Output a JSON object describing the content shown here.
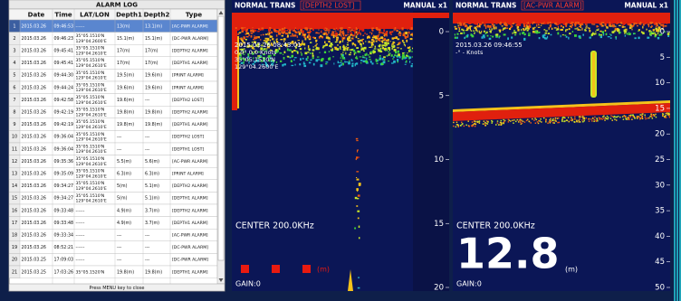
{
  "alarm_log": {
    "title": "ALARM LOG",
    "columns": [
      "Date",
      "Time",
      "LAT/LON",
      "Depth1",
      "Depth2",
      "Type"
    ],
    "rows": [
      [
        1,
        "2015.03.26",
        "09:46:53",
        [
          "------"
        ],
        "13(m)",
        "13.1(m)",
        "[AC-PWR ALARM]"
      ],
      [
        2,
        "2015.03.26",
        "09:46:23",
        [
          "35°05.1510'N",
          "129°04.2600'E"
        ],
        "15.1(m)",
        "15.1(m)",
        "[DC-PWR ALARM]"
      ],
      [
        3,
        "2015.03.26",
        "09:45:41",
        [
          "35°05.1510'N",
          "129°04.2610'E"
        ],
        "17(m)",
        "17(m)",
        "[DEPTH2 ALARM]"
      ],
      [
        4,
        "2015.03.26",
        "09:45:41",
        [
          "35°05.1510'N",
          "129°04.2610'E"
        ],
        "17(m)",
        "17(m)",
        "[DEPTH1 ALARM]"
      ],
      [
        5,
        "2015.03.26",
        "09:44:30",
        [
          "35°05.1510'N",
          "129°04.2610'E"
        ],
        "19.5(m)",
        "19.6(m)",
        "[PRINT ALARM]"
      ],
      [
        6,
        "2015.03.26",
        "09:44:24",
        [
          "35°05.1510'N",
          "129°04.2610'E"
        ],
        "19.6(m)",
        "19.6(m)",
        "[PRINT ALARM]"
      ],
      [
        7,
        "2015.03.26",
        "09:42:58",
        [
          "35°05.1510'N",
          "129°04.2610'E"
        ],
        "19.6(m)",
        "---",
        "[DEPTH2 LOST]"
      ],
      [
        8,
        "2015.03.26",
        "09:42:19",
        [
          "35°05.1510'N",
          "129°04.2610'E"
        ],
        "19.8(m)",
        "19.8(m)",
        "[DEPTH2 ALARM]"
      ],
      [
        9,
        "2015.03.26",
        "09:42:19",
        [
          "35°05.1510'N",
          "129°04.2610'E"
        ],
        "19.8(m)",
        "19.8(m)",
        "[DEPTH1 ALARM]"
      ],
      [
        10,
        "2015.03.26",
        "09:36:04",
        [
          "35°05.1510'N",
          "129°04.2610'E"
        ],
        "---",
        "---",
        "[DEPTH2 LOST]"
      ],
      [
        11,
        "2015.03.26",
        "09:36:04",
        [
          "35°05.1510'N",
          "129°04.2610'E"
        ],
        "---",
        "---",
        "[DEPTH1 LOST]"
      ],
      [
        12,
        "2015.03.26",
        "09:35:36",
        [
          "35°05.1510'N",
          "129°04.2610'E"
        ],
        "5.5(m)",
        "5.6(m)",
        "[AC-PWR ALARM]"
      ],
      [
        13,
        "2015.03.26",
        "09:35:09",
        [
          "35°05.1510'N",
          "129°04.2610'E"
        ],
        "6.3(m)",
        "6.3(m)",
        "[PRINT ALARM]"
      ],
      [
        14,
        "2015.03.26",
        "09:34:27",
        [
          "35°05.1510'N",
          "129°04.2610'E"
        ],
        "5(m)",
        "5.1(m)",
        "[DEPTH2 ALARM]"
      ],
      [
        15,
        "2015.03.26",
        "09:34:27",
        [
          "35°05.1510'N",
          "129°04.2610'E"
        ],
        "5(m)",
        "5.1(m)",
        "[DEPTH1 ALARM]"
      ],
      [
        16,
        "2015.03.26",
        "09:33:48",
        [
          "------"
        ],
        "4.9(m)",
        "3.7(m)",
        "[DEPTH2 ALARM]"
      ],
      [
        17,
        "2015.03.26",
        "09:33:48",
        [
          "------"
        ],
        "4.9(m)",
        "3.7(m)",
        "[DEPTH1 ALARM]"
      ],
      [
        18,
        "2015.03.26",
        "09:33:34",
        [
          "------"
        ],
        "---",
        "---",
        "[AC-PWR ALARM]"
      ],
      [
        19,
        "2015.03.26",
        "08:52:21",
        [
          "------"
        ],
        "---",
        "---",
        "[DC-PWR ALARM]"
      ],
      [
        20,
        "2015.03.25",
        "17:09:03",
        [
          "------"
        ],
        "---",
        "---",
        "[DC-PWR ALARM]"
      ],
      [
        21,
        "2015.03.25",
        "17:03:26",
        [
          "35°05.1520'N"
        ],
        "19.8(m)",
        "19.8(m)",
        "[DEPTH1 ALARM]"
      ]
    ],
    "footer": "Press MENU key to close"
  },
  "panels": [
    {
      "mode": "NORMAL TRANS",
      "alarm": "[DEPTH2 LOST]",
      "range": "MANUAL x1",
      "timestamp": "2015.03.26 08:43:01",
      "info": [
        "0.0°  0.0 Knots",
        "35°05.1510'N",
        "129°04.2600'E"
      ],
      "frequency": "CENTER 200.0KHz",
      "unit": "(m)",
      "gain": "GAIN:0",
      "scale": [
        0,
        5,
        10,
        15,
        20
      ]
    },
    {
      "mode": "NORMAL TRANS",
      "alarm": "[AC-PWR ALARM]",
      "range": "MANUAL x1",
      "timestamp": "2015.03.26 09:46:55",
      "info": [
        "-°  - Knots"
      ],
      "frequency": "CENTER 200.0KHz",
      "depth": 12.8,
      "unit": "(m)",
      "gain": "GAIN:0",
      "scale": [
        0,
        5,
        10,
        15,
        20,
        25,
        30,
        35,
        40,
        45,
        50
      ]
    }
  ]
}
